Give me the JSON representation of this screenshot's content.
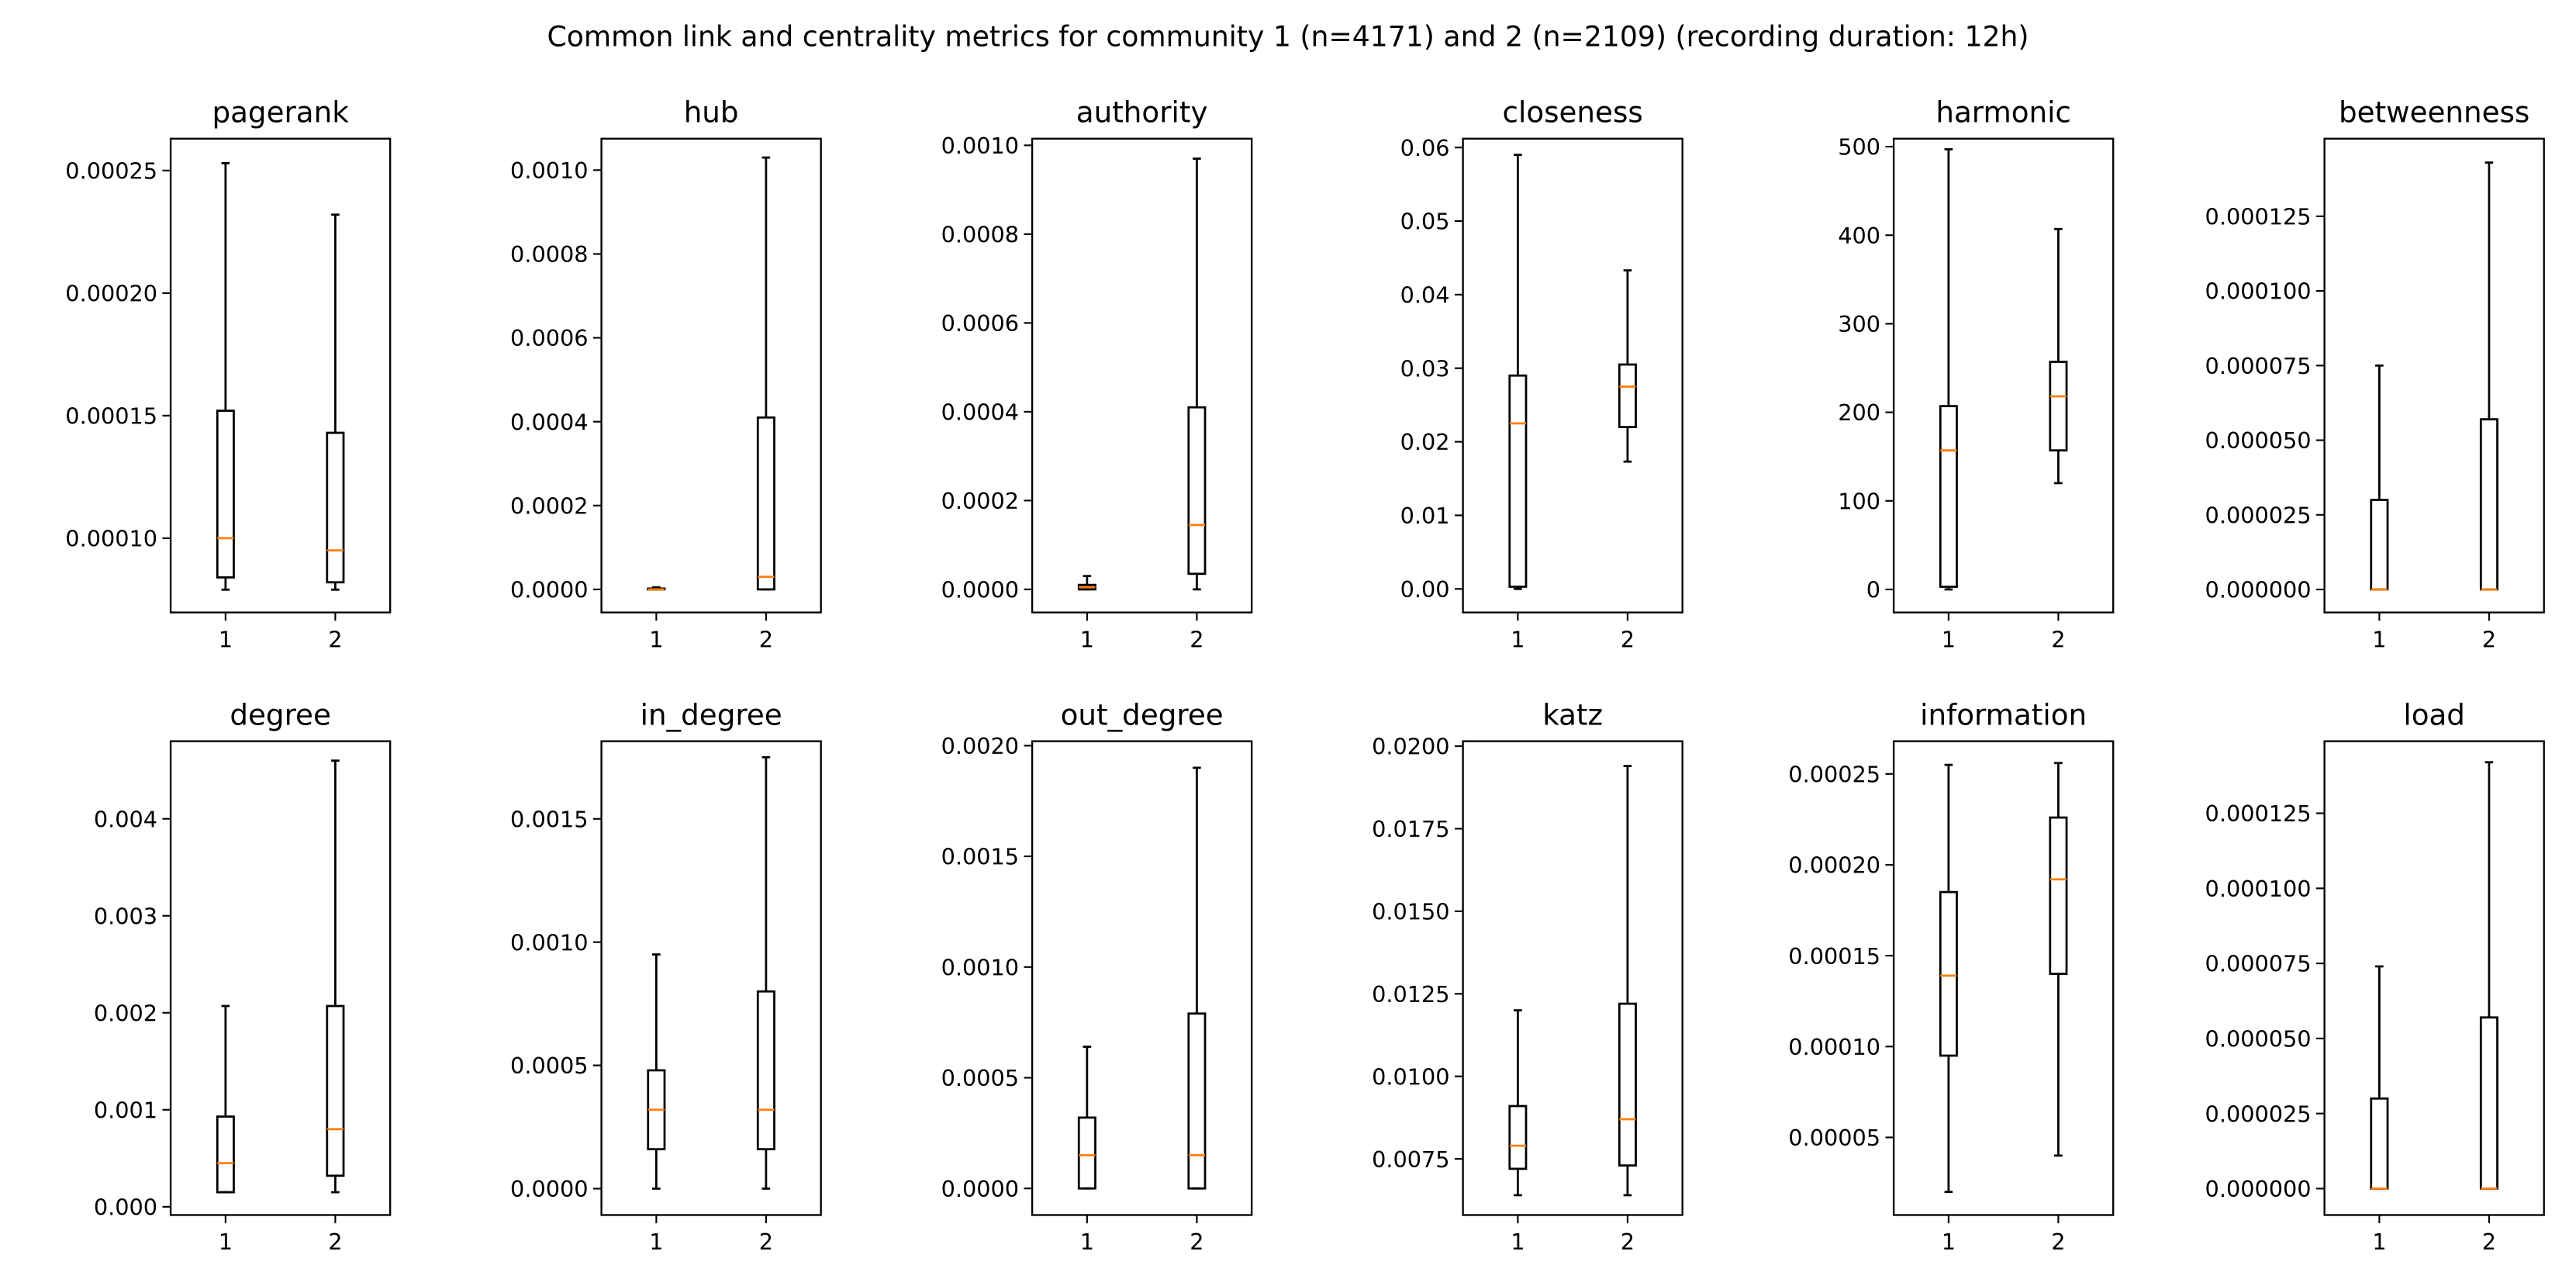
{
  "chart_data": {
    "type": "boxplot",
    "title": "Common link and centrality metrics for community 1 (n=4171) and 2 (n=2109) (recording duration: 12h)",
    "categories": [
      "1",
      "2"
    ],
    "colors": {
      "box": "#000000",
      "median": "#ff7f0e"
    },
    "panels": [
      {
        "title": "pagerank",
        "ylim": [
          6.97e-05,
          0.000263
        ],
        "yticks": [
          0.0001,
          0.00015,
          0.0002,
          0.00025
        ],
        "ytick_labels": [
          "0.00010",
          "0.00015",
          "0.00020",
          "0.00025"
        ],
        "boxes": [
          {
            "whislo": 7.9e-05,
            "q1": 8.4e-05,
            "med": 0.0001,
            "q3": 0.000152,
            "whishi": 0.000253
          },
          {
            "whislo": 7.9e-05,
            "q1": 8.2e-05,
            "med": 9.5e-05,
            "q3": 0.000143,
            "whishi": 0.000232
          }
        ]
      },
      {
        "title": "hub",
        "ylim": [
          -5.5e-05,
          0.001075
        ],
        "yticks": [
          0,
          0.0002,
          0.0004,
          0.0006,
          0.0008,
          0.001
        ],
        "ytick_labels": [
          "0.0000",
          "0.0002",
          "0.0004",
          "0.0006",
          "0.0008",
          "0.0010"
        ],
        "boxes": [
          {
            "whislo": 0,
            "q1": 0,
            "med": 0,
            "q3": 2e-06,
            "whishi": 5e-06
          },
          {
            "whislo": 0,
            "q1": 0,
            "med": 3e-05,
            "q3": 0.00041,
            "whishi": 0.00103
          }
        ]
      },
      {
        "title": "authority",
        "ylim": [
          -5.2e-05,
          0.001015
        ],
        "yticks": [
          0,
          0.0002,
          0.0004,
          0.0006,
          0.0008,
          0.001
        ],
        "ytick_labels": [
          "0.0000",
          "0.0002",
          "0.0004",
          "0.0006",
          "0.0008",
          "0.0010"
        ],
        "boxes": [
          {
            "whislo": 0,
            "q1": 0,
            "med": 5e-06,
            "q3": 1e-05,
            "whishi": 3e-05
          },
          {
            "whislo": 0,
            "q1": 3.5e-05,
            "med": 0.000145,
            "q3": 0.00041,
            "whishi": 0.00097
          }
        ]
      },
      {
        "title": "closeness",
        "ylim": [
          -0.0032,
          0.0612
        ],
        "yticks": [
          0,
          0.01,
          0.02,
          0.03,
          0.04,
          0.05,
          0.06
        ],
        "ytick_labels": [
          "0.00",
          "0.01",
          "0.02",
          "0.03",
          "0.04",
          "0.05",
          "0.06"
        ],
        "boxes": [
          {
            "whislo": 0,
            "q1": 0.0003,
            "med": 0.0225,
            "q3": 0.029,
            "whishi": 0.059
          },
          {
            "whislo": 0.0173,
            "q1": 0.022,
            "med": 0.0275,
            "q3": 0.0305,
            "whishi": 0.0433
          }
        ]
      },
      {
        "title": "harmonic",
        "ylim": [
          -26,
          509
        ],
        "yticks": [
          0,
          100,
          200,
          300,
          400,
          500
        ],
        "ytick_labels": [
          "0",
          "100",
          "200",
          "300",
          "400",
          "500"
        ],
        "boxes": [
          {
            "whislo": 0,
            "q1": 3,
            "med": 157,
            "q3": 207,
            "whishi": 497
          },
          {
            "whislo": 120,
            "q1": 157,
            "med": 218,
            "q3": 257,
            "whishi": 407
          }
        ]
      },
      {
        "title": "betweenness",
        "ylim": [
          -7.7e-06,
          0.000151
        ],
        "yticks": [
          0,
          2.5e-05,
          5e-05,
          7.5e-05,
          0.0001,
          0.000125
        ],
        "ytick_labels": [
          "0.000000",
          "0.000025",
          "0.000050",
          "0.000075",
          "0.000100",
          "0.000125"
        ],
        "boxes": [
          {
            "whislo": 0,
            "q1": 0,
            "med": 0,
            "q3": 3e-05,
            "whishi": 7.5e-05
          },
          {
            "whislo": 0,
            "q1": 0,
            "med": 0,
            "q3": 5.7e-05,
            "whishi": 0.000143
          }
        ]
      },
      {
        "title": "degree",
        "ylim": [
          -8.5e-05,
          0.0048
        ],
        "yticks": [
          0,
          0.001,
          0.002,
          0.003,
          0.004
        ],
        "ytick_labels": [
          "0.000",
          "0.001",
          "0.002",
          "0.003",
          "0.004"
        ],
        "boxes": [
          {
            "whislo": 0.00015,
            "q1": 0.00015,
            "med": 0.00045,
            "q3": 0.00093,
            "whishi": 0.00207
          },
          {
            "whislo": 0.00015,
            "q1": 0.00032,
            "med": 0.0008,
            "q3": 0.00207,
            "whishi": 0.0046
          }
        ]
      },
      {
        "title": "in_degree",
        "ylim": [
          -0.000107,
          0.001815
        ],
        "yticks": [
          0,
          0.0005,
          0.001,
          0.0015
        ],
        "ytick_labels": [
          "0.0000",
          "0.0005",
          "0.0010",
          "0.0015"
        ],
        "boxes": [
          {
            "whislo": 0,
            "q1": 0.00016,
            "med": 0.00032,
            "q3": 0.00048,
            "whishi": 0.00095
          },
          {
            "whislo": 0,
            "q1": 0.00016,
            "med": 0.00032,
            "q3": 0.0008,
            "whishi": 0.00175
          }
        ]
      },
      {
        "title": "out_degree",
        "ylim": [
          -0.00012,
          0.00202
        ],
        "yticks": [
          0,
          0.0005,
          0.001,
          0.0015,
          0.002
        ],
        "ytick_labels": [
          "0.0000",
          "0.0005",
          "0.0010",
          "0.0015",
          "0.0020"
        ],
        "boxes": [
          {
            "whislo": 0,
            "q1": 0,
            "med": 0.00015,
            "q3": 0.00032,
            "whishi": 0.00064
          },
          {
            "whislo": 0,
            "q1": 0,
            "med": 0.00015,
            "q3": 0.00079,
            "whishi": 0.0019
          }
        ]
      },
      {
        "title": "katz",
        "ylim": [
          0.0058,
          0.02015
        ],
        "yticks": [
          0.0075,
          0.01,
          0.0125,
          0.015,
          0.0175,
          0.02
        ],
        "ytick_labels": [
          "0.0075",
          "0.0100",
          "0.0125",
          "0.0150",
          "0.0175",
          "0.0200"
        ],
        "boxes": [
          {
            "whislo": 0.0064,
            "q1": 0.0072,
            "med": 0.0079,
            "q3": 0.0091,
            "whishi": 0.012
          },
          {
            "whislo": 0.0064,
            "q1": 0.0073,
            "med": 0.0087,
            "q3": 0.0122,
            "whishi": 0.0194
          }
        ]
      },
      {
        "title": "information",
        "ylim": [
          7.3e-06,
          0.000268
        ],
        "yticks": [
          5e-05,
          0.0001,
          0.00015,
          0.0002,
          0.00025
        ],
        "ytick_labels": [
          "0.00005",
          "0.00010",
          "0.00015",
          "0.00020",
          "0.00025"
        ],
        "boxes": [
          {
            "whislo": 2e-05,
            "q1": 9.5e-05,
            "med": 0.000139,
            "q3": 0.000185,
            "whishi": 0.000255
          },
          {
            "whislo": 4e-05,
            "q1": 0.00014,
            "med": 0.000192,
            "q3": 0.000226,
            "whishi": 0.000256
          }
        ]
      },
      {
        "title": "load",
        "ylim": [
          -8.8e-06,
          0.000149
        ],
        "yticks": [
          0,
          2.5e-05,
          5e-05,
          7.5e-05,
          0.0001,
          0.000125
        ],
        "ytick_labels": [
          "0.000000",
          "0.000025",
          "0.000050",
          "0.000075",
          "0.000100",
          "0.000125"
        ],
        "boxes": [
          {
            "whislo": 0,
            "q1": 0,
            "med": 0,
            "q3": 3e-05,
            "whishi": 7.4e-05
          },
          {
            "whislo": 0,
            "q1": 0,
            "med": 0,
            "q3": 5.7e-05,
            "whishi": 0.000142
          }
        ]
      }
    ]
  }
}
